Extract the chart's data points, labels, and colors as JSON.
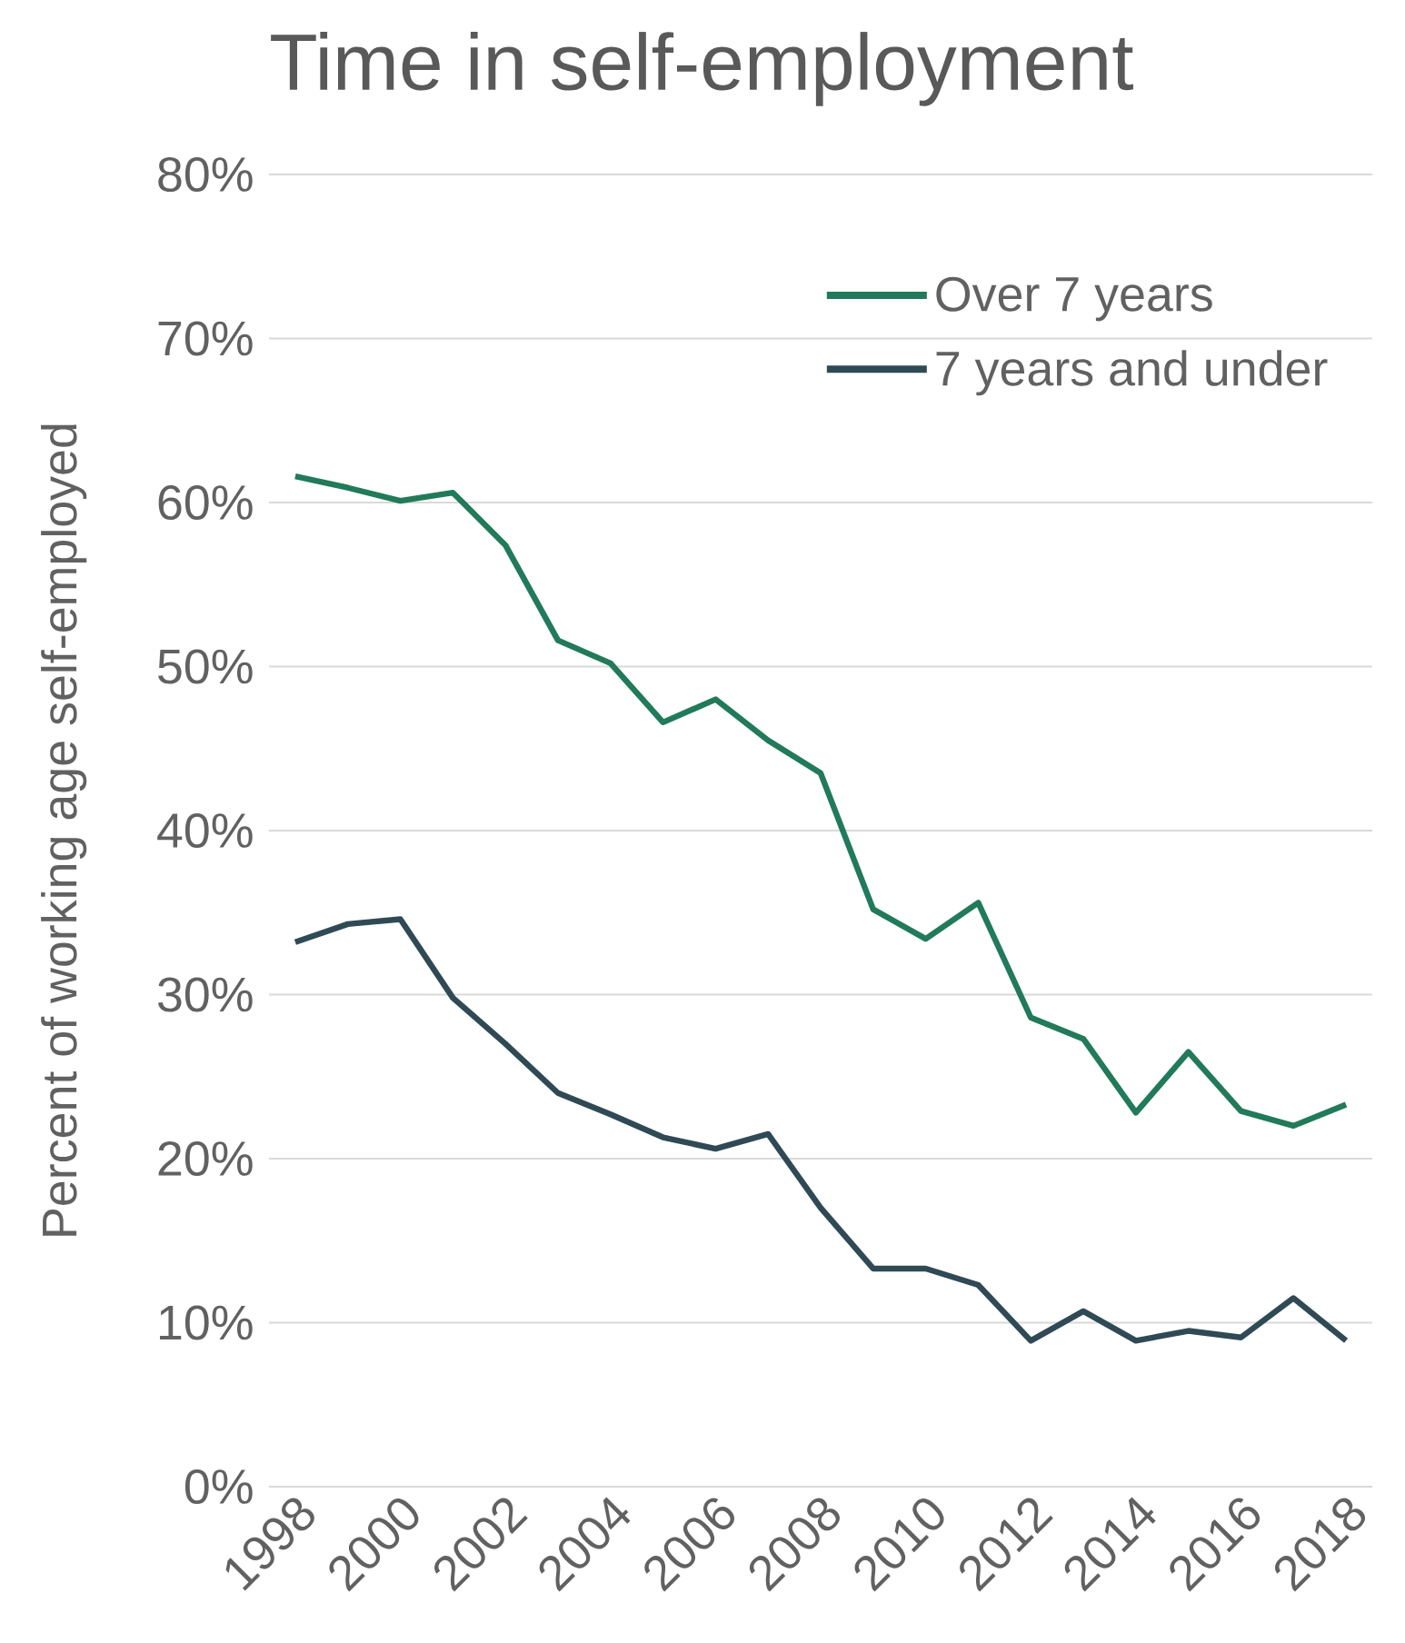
{
  "chart_data": {
    "type": "line",
    "title": "Time in self-employment",
    "ylabel": "Percent of working age self-employed",
    "x": [
      1998,
      1999,
      2000,
      2001,
      2002,
      2003,
      2004,
      2005,
      2006,
      2007,
      2008,
      2009,
      2010,
      2011,
      2012,
      2013,
      2014,
      2015,
      2016,
      2017,
      2018
    ],
    "series": [
      {
        "name": "Over 7 years",
        "color": "#217a5a",
        "values": [
          61.6,
          60.9,
          60.1,
          60.6,
          57.4,
          51.6,
          50.2,
          46.6,
          48.0,
          45.5,
          43.5,
          35.2,
          33.4,
          35.6,
          28.6,
          27.3,
          22.8,
          26.5,
          22.9,
          22.0,
          23.3
        ]
      },
      {
        "name": "7 years and under",
        "color": "#2f4a55",
        "values": [
          33.2,
          34.3,
          34.6,
          29.8,
          27.0,
          24.0,
          22.7,
          21.3,
          20.6,
          21.5,
          17.0,
          13.3,
          13.3,
          12.3,
          8.9,
          10.7,
          8.9,
          9.5,
          9.1,
          11.5,
          8.9
        ]
      }
    ],
    "xlim": [
      1997.5,
      2018.5
    ],
    "xticks": [
      1998,
      2000,
      2002,
      2004,
      2006,
      2008,
      2010,
      2012,
      2014,
      2016,
      2018
    ],
    "ylim": [
      0,
      80
    ],
    "yticks": [
      {
        "value": 0,
        "label": "0%"
      },
      {
        "value": 10,
        "label": "10%"
      },
      {
        "value": 20,
        "label": "20%"
      },
      {
        "value": 30,
        "label": "30%"
      },
      {
        "value": 40,
        "label": "40%"
      },
      {
        "value": 50,
        "label": "50%"
      },
      {
        "value": 60,
        "label": "60%"
      },
      {
        "value": 70,
        "label": "70%"
      },
      {
        "value": 80,
        "label": "80%"
      }
    ],
    "grid": "y",
    "legend": "top right",
    "marker": "none",
    "line_style": "solid"
  }
}
